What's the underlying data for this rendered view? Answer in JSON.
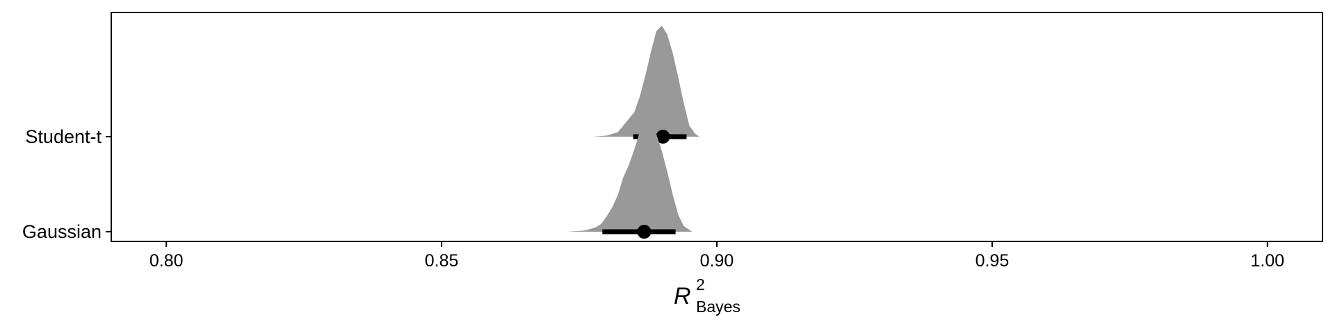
{
  "chart_data": {
    "type": "halfeye",
    "title": "",
    "xlabel": {
      "main": "R",
      "sup": "2",
      "sub": "Bayes"
    },
    "ylabel": "",
    "xlim": [
      0.79,
      1.01
    ],
    "x_ticks": [
      0.8,
      0.85,
      0.9,
      0.95,
      1.0
    ],
    "x_tick_labels": [
      "0.80",
      "0.85",
      "0.90",
      "0.95",
      "1.00"
    ],
    "categories": [
      "Student-t",
      "Gaussian"
    ],
    "grid": false,
    "colors": {
      "density": "#999999",
      "interval": "#000000",
      "frame": "#000000"
    },
    "series": [
      {
        "name": "Student-t",
        "point": 0.8902,
        "interval": [
          0.8848,
          0.8945
        ],
        "density": [
          [
            0.8775,
            0.0
          ],
          [
            0.88,
            0.01
          ],
          [
            0.882,
            0.04
          ],
          [
            0.883,
            0.1
          ],
          [
            0.884,
            0.16
          ],
          [
            0.885,
            0.22
          ],
          [
            0.886,
            0.36
          ],
          [
            0.887,
            0.55
          ],
          [
            0.888,
            0.76
          ],
          [
            0.889,
            0.95
          ],
          [
            0.89,
            1.0
          ],
          [
            0.891,
            0.92
          ],
          [
            0.892,
            0.75
          ],
          [
            0.893,
            0.53
          ],
          [
            0.894,
            0.3
          ],
          [
            0.895,
            0.1
          ],
          [
            0.896,
            0.03
          ],
          [
            0.8968,
            0.0
          ]
        ]
      },
      {
        "name": "Gaussian",
        "point": 0.8868,
        "interval": [
          0.8792,
          0.8925
        ],
        "density": [
          [
            0.8728,
            0.0
          ],
          [
            0.876,
            0.01
          ],
          [
            0.878,
            0.04
          ],
          [
            0.879,
            0.07
          ],
          [
            0.88,
            0.14
          ],
          [
            0.881,
            0.22
          ],
          [
            0.882,
            0.33
          ],
          [
            0.883,
            0.49
          ],
          [
            0.884,
            0.6
          ],
          [
            0.885,
            0.74
          ],
          [
            0.886,
            0.9
          ],
          [
            0.887,
            0.98
          ],
          [
            0.8875,
            1.0
          ],
          [
            0.888,
            0.98
          ],
          [
            0.889,
            0.88
          ],
          [
            0.89,
            0.73
          ],
          [
            0.891,
            0.54
          ],
          [
            0.892,
            0.33
          ],
          [
            0.893,
            0.15
          ],
          [
            0.894,
            0.05
          ],
          [
            0.8955,
            0.0
          ]
        ]
      }
    ]
  }
}
